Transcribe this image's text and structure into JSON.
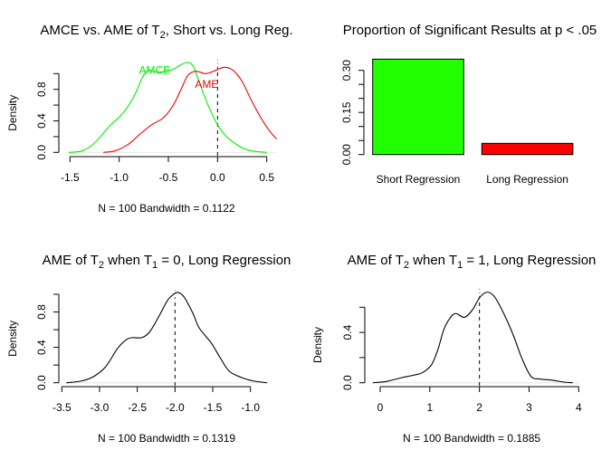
{
  "chart_data": [
    {
      "id": "p1",
      "type": "line",
      "title": {
        "pre": "AMCE vs. AME of T",
        "sub": "2",
        "post": ", Short vs. Long Reg."
      },
      "xlabel": "N = 100   Bandwidth = 0.1122",
      "ylabel": "Density",
      "xlim": [
        -1.6,
        0.6
      ],
      "ylim": [
        0,
        1.17
      ],
      "xticks": [
        -1.5,
        -1.0,
        -0.5,
        0.0,
        0.5
      ],
      "xtick_labels": [
        "-1.5",
        "-1.0",
        "-0.5",
        "0.0",
        "0.5"
      ],
      "yticks": [
        0,
        0.2,
        0.4,
        0.6,
        0.8,
        1.0
      ],
      "ytick_labels": [
        "0.0",
        "",
        "0.4",
        "",
        "0.8",
        ""
      ],
      "vline": 0.0,
      "series": [
        {
          "name": "AMCE",
          "color": "#00ee00",
          "label": {
            "text": "AMCE",
            "x": -0.64,
            "y": 1.0
          },
          "points": [
            [
              -1.51,
              0.0
            ],
            [
              -1.375,
              0.02
            ],
            [
              -1.25,
              0.12
            ],
            [
              -1.1,
              0.33
            ],
            [
              -0.96,
              0.5
            ],
            [
              -0.85,
              0.71
            ],
            [
              -0.76,
              0.96
            ],
            [
              -0.7,
              1.04
            ],
            [
              -0.61,
              1.02
            ],
            [
              -0.48,
              1.04
            ],
            [
              -0.39,
              1.1
            ],
            [
              -0.32,
              1.14
            ],
            [
              -0.25,
              1.1
            ],
            [
              -0.18,
              0.87
            ],
            [
              -0.09,
              0.58
            ],
            [
              0.01,
              0.33
            ],
            [
              0.1,
              0.19
            ],
            [
              0.22,
              0.08
            ],
            [
              0.34,
              0.02
            ],
            [
              0.5,
              0.0
            ]
          ]
        },
        {
          "name": "AME",
          "color": "#ee0000",
          "label": {
            "text": "AME",
            "x": -0.11,
            "y": 0.82
          },
          "points": [
            [
              -1.16,
              0.0
            ],
            [
              -1.04,
              0.02
            ],
            [
              -0.91,
              0.1
            ],
            [
              -0.79,
              0.23
            ],
            [
              -0.67,
              0.35
            ],
            [
              -0.55,
              0.44
            ],
            [
              -0.45,
              0.6
            ],
            [
              -0.36,
              0.83
            ],
            [
              -0.3,
              0.98
            ],
            [
              -0.22,
              1.03
            ],
            [
              -0.12,
              1.0
            ],
            [
              -0.02,
              1.04
            ],
            [
              0.07,
              1.08
            ],
            [
              0.16,
              1.04
            ],
            [
              0.25,
              0.9
            ],
            [
              0.34,
              0.67
            ],
            [
              0.44,
              0.44
            ],
            [
              0.53,
              0.27
            ],
            [
              0.6,
              0.17
            ]
          ]
        }
      ]
    },
    {
      "id": "p2",
      "type": "bar",
      "title": {
        "pre": "Proportion of Significant Results at p < .05",
        "sub": "",
        "post": ""
      },
      "categories": [
        "Short Regression",
        "Long Regression"
      ],
      "values": [
        0.34,
        0.04
      ],
      "colors": [
        "#22ff00",
        "#ff0000"
      ],
      "ylim": [
        0,
        0.35
      ],
      "yticks": [
        0,
        0.05,
        0.1,
        0.15,
        0.2,
        0.25,
        0.3
      ],
      "ytick_labels": [
        "0.00",
        "",
        "",
        "0.15",
        "",
        "",
        "0.30"
      ],
      "xlabel": "",
      "ylabel": ""
    },
    {
      "id": "p3",
      "type": "line",
      "title": {
        "pre": "AME of T",
        "sub": "2",
        "mid": " when T",
        "sub2": "1",
        "post": " = 0, Long Regression"
      },
      "xlabel": "N = 100   Bandwidth = 0.1319",
      "ylabel": "Density",
      "xlim": [
        -3.55,
        -0.75
      ],
      "ylim": [
        0,
        1.04
      ],
      "xticks": [
        -3.5,
        -3.0,
        -2.5,
        -2.0,
        -1.5,
        -1.0
      ],
      "xtick_labels": [
        "-3.5",
        "-3.0",
        "-2.5",
        "-2.0",
        "-1.5",
        "-1.0"
      ],
      "yticks": [
        0,
        0.2,
        0.4,
        0.6,
        0.8,
        1.0
      ],
      "ytick_labels": [
        "0.0",
        "",
        "0.4",
        "",
        "0.8",
        ""
      ],
      "vline": -2.0,
      "series": [
        {
          "name": "AME T1=0",
          "color": "#000000",
          "points": [
            [
              -3.44,
              0.0
            ],
            [
              -3.24,
              0.02
            ],
            [
              -3.08,
              0.07
            ],
            [
              -2.92,
              0.18
            ],
            [
              -2.76,
              0.39
            ],
            [
              -2.64,
              0.49
            ],
            [
              -2.56,
              0.51
            ],
            [
              -2.44,
              0.51
            ],
            [
              -2.34,
              0.57
            ],
            [
              -2.22,
              0.74
            ],
            [
              -2.1,
              0.93
            ],
            [
              -2.02,
              1.0
            ],
            [
              -1.96,
              1.02
            ],
            [
              -1.88,
              0.97
            ],
            [
              -1.76,
              0.78
            ],
            [
              -1.68,
              0.62
            ],
            [
              -1.52,
              0.45
            ],
            [
              -1.4,
              0.28
            ],
            [
              -1.28,
              0.13
            ],
            [
              -1.12,
              0.06
            ],
            [
              -0.96,
              0.02
            ],
            [
              -0.78,
              0.0
            ]
          ]
        }
      ]
    },
    {
      "id": "p4",
      "type": "line",
      "title": {
        "pre": "AME of T",
        "sub": "2",
        "mid": " when T",
        "sub2": "1",
        "post": " = 1, Long Regression"
      },
      "xlabel": "N = 100   Bandwidth = 0.1885",
      "ylabel": "Density",
      "xlim": [
        -0.2,
        4.0
      ],
      "ylim": [
        0,
        0.74
      ],
      "xticks": [
        0,
        1,
        2,
        3,
        4
      ],
      "xtick_labels": [
        "0",
        "1",
        "2",
        "3",
        "4"
      ],
      "yticks": [
        0,
        0.2,
        0.4,
        0.6
      ],
      "ytick_labels": [
        "0.0",
        "",
        "0.4",
        ""
      ],
      "vline": 2.0,
      "series": [
        {
          "name": "AME T1=1",
          "color": "#000000",
          "points": [
            [
              -0.15,
              0.0
            ],
            [
              0.12,
              0.01
            ],
            [
              0.43,
              0.04
            ],
            [
              0.67,
              0.06
            ],
            [
              0.85,
              0.08
            ],
            [
              1.03,
              0.14
            ],
            [
              1.16,
              0.26
            ],
            [
              1.28,
              0.42
            ],
            [
              1.4,
              0.51
            ],
            [
              1.52,
              0.55
            ],
            [
              1.7,
              0.52
            ],
            [
              1.86,
              0.58
            ],
            [
              2.01,
              0.68
            ],
            [
              2.16,
              0.72
            ],
            [
              2.31,
              0.68
            ],
            [
              2.49,
              0.55
            ],
            [
              2.68,
              0.38
            ],
            [
              2.86,
              0.19
            ],
            [
              3.04,
              0.05
            ],
            [
              3.22,
              0.03
            ],
            [
              3.47,
              0.02
            ],
            [
              3.71,
              0.005
            ],
            [
              3.88,
              0.0
            ]
          ]
        }
      ]
    }
  ]
}
